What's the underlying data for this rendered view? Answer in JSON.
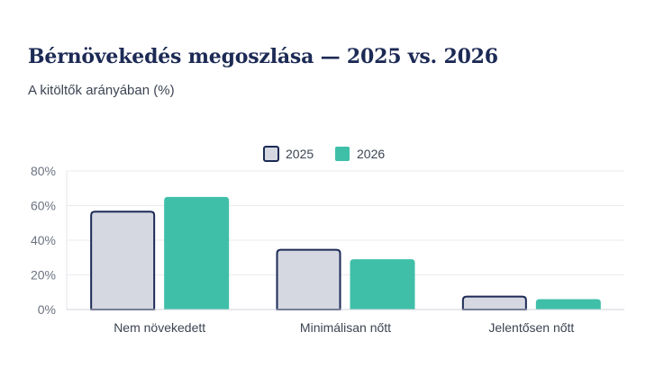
{
  "chart_data": {
    "type": "bar",
    "title": "Bérnövekedés megoszlása — 2025 vs. 2026",
    "subtitle": "A kitöltők arányában (%)",
    "categories": [
      "Nem növekedett",
      "Minimálisan nőtt",
      "Jelentősen nőtt"
    ],
    "series": [
      {
        "name": "2025",
        "values": [
          57,
          35,
          8
        ],
        "color": "#d5d8e1",
        "stroke": "#1c2a55"
      },
      {
        "name": "2026",
        "values": [
          65,
          29,
          6
        ],
        "color": "#3fbfa8",
        "stroke": "none"
      }
    ],
    "ylim": [
      0,
      80
    ],
    "yticks": [
      "0%",
      "20%",
      "40%",
      "60%",
      "80%"
    ],
    "ytick_values": [
      0,
      20,
      40,
      60,
      80
    ],
    "grid": true,
    "legend_position": "top-center"
  }
}
